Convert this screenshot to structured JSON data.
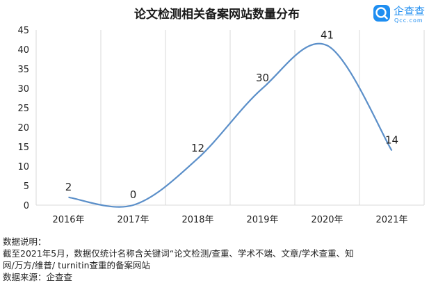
{
  "logo": {
    "name": "企查查",
    "domain": "Qcc.com",
    "color": "#1f8ef1"
  },
  "notes": {
    "heading": "数据说明：",
    "line1": "截至2021年5月，数据仅统计名称含关键词“论文检测/查重、学术不端、文章/学术查重、知",
    "line2": "网/万方/维普/ turnitin查重的备案网站",
    "source": "数据来源：企查查"
  },
  "chart_data": {
    "type": "line",
    "title": "论文检测相关备案网站数量分布",
    "categories": [
      "2016年",
      "2017年",
      "2018年",
      "2019年",
      "2020年",
      "2021年"
    ],
    "series": [
      {
        "values": [
          2,
          0,
          12,
          30,
          41,
          14
        ],
        "color": "#5b8fc9",
        "smooth": true
      }
    ],
    "ylim": [
      0,
      45
    ],
    "yticks": [
      0,
      5,
      10,
      15,
      20,
      25,
      30,
      35,
      40,
      45
    ],
    "grid": {
      "vertical": true,
      "horizontal": false
    },
    "legend": "none"
  }
}
